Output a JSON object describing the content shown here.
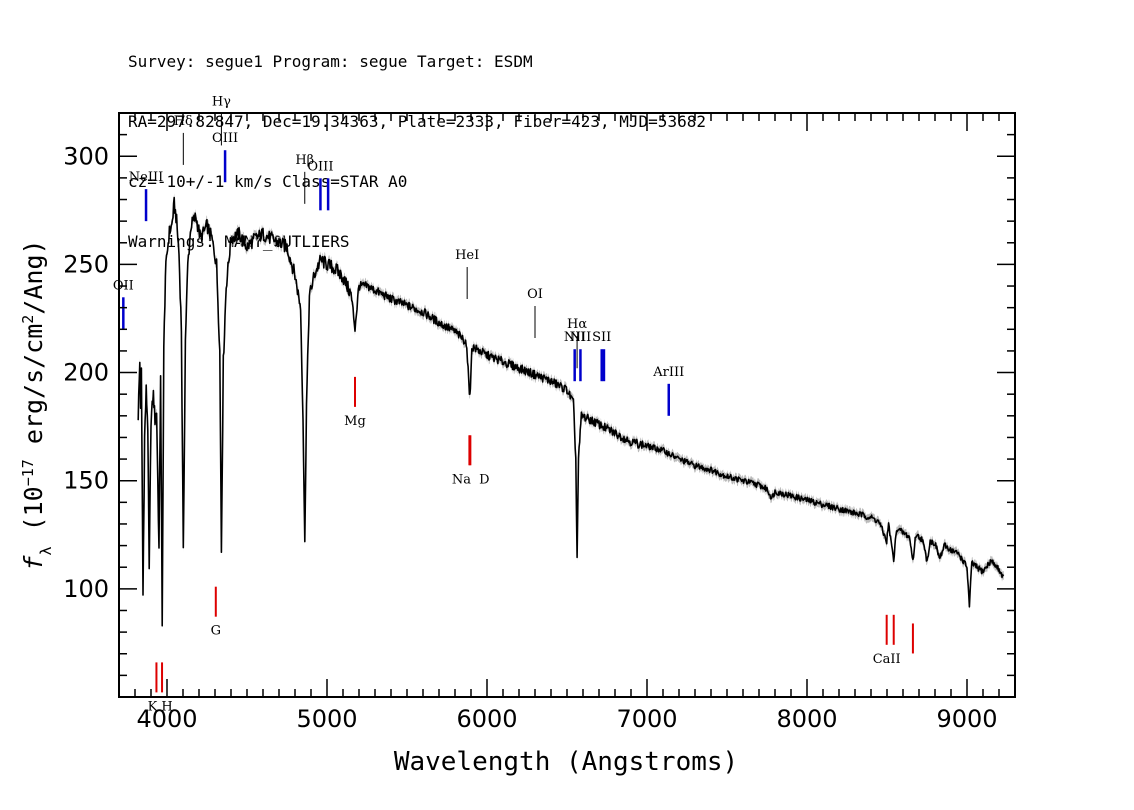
{
  "header": {
    "line1": "Survey: segue1 Program: segue Target: ESDM",
    "line2": "RA=297.82847, Dec=19.34363, Plate=2333, Fiber=423, MJD=53682",
    "line3": "cz=-10+/-1 km/s Class=STAR A0",
    "line4": "Warnings: MANY_OUTLIERS"
  },
  "chart_data": {
    "type": "line",
    "xlabel": "Wavelength (Angstroms)",
    "ylabel": "f_λ (10^-17 erg/s/cm²/Ang)",
    "xlim": [
      3700,
      9300
    ],
    "ylim": [
      50,
      320
    ],
    "xticks": [
      4000,
      5000,
      6000,
      7000,
      8000,
      9000
    ],
    "yticks": [
      100,
      150,
      200,
      250,
      300
    ],
    "grid": false,
    "colors": {
      "flux": "#000000",
      "error_band": "#bbbbbb",
      "emission": "#0000cc",
      "absorption": "#dd0000"
    },
    "series": [
      {
        "values_format": "wavelength_angstrom, flux",
        "values": [
          [
            3820,
            180
          ],
          [
            3830,
            205
          ],
          [
            3835,
            185
          ],
          [
            3840,
            200
          ],
          [
            3850,
            97
          ],
          [
            3860,
            170
          ],
          [
            3870,
            192
          ],
          [
            3880,
            175
          ],
          [
            3889,
            108
          ],
          [
            3900,
            178
          ],
          [
            3915,
            190
          ],
          [
            3925,
            178
          ],
          [
            3935,
            182
          ],
          [
            3950,
            118
          ],
          [
            3960,
            200
          ],
          [
            3970,
            82
          ],
          [
            3980,
            210
          ],
          [
            3990,
            245
          ],
          [
            4000,
            255
          ],
          [
            4015,
            265
          ],
          [
            4030,
            268
          ],
          [
            4045,
            278
          ],
          [
            4060,
            270
          ],
          [
            4075,
            255
          ],
          [
            4090,
            220
          ],
          [
            4102,
            116
          ],
          [
            4115,
            215
          ],
          [
            4130,
            250
          ],
          [
            4150,
            268
          ],
          [
            4180,
            272
          ],
          [
            4210,
            262
          ],
          [
            4250,
            268
          ],
          [
            4280,
            262
          ],
          [
            4310,
            250
          ],
          [
            4330,
            210
          ],
          [
            4340,
            118
          ],
          [
            4352,
            205
          ],
          [
            4370,
            240
          ],
          [
            4400,
            262
          ],
          [
            4450,
            264
          ],
          [
            4500,
            258
          ],
          [
            4550,
            262
          ],
          [
            4600,
            264
          ],
          [
            4650,
            262
          ],
          [
            4700,
            260
          ],
          [
            4750,
            258
          ],
          [
            4800,
            245
          ],
          [
            4835,
            230
          ],
          [
            4850,
            180
          ],
          [
            4861,
            120
          ],
          [
            4872,
            185
          ],
          [
            4890,
            235
          ],
          [
            4920,
            245
          ],
          [
            4960,
            252
          ],
          [
            5000,
            250
          ],
          [
            5050,
            248
          ],
          [
            5100,
            244
          ],
          [
            5150,
            236
          ],
          [
            5175,
            221
          ],
          [
            5200,
            240
          ],
          [
            5250,
            240
          ],
          [
            5300,
            238
          ],
          [
            5400,
            234
          ],
          [
            5500,
            231
          ],
          [
            5600,
            228
          ],
          [
            5700,
            223
          ],
          [
            5800,
            219
          ],
          [
            5870,
            214
          ],
          [
            5890,
            192
          ],
          [
            5896,
            191
          ],
          [
            5905,
            212
          ],
          [
            6000,
            208
          ],
          [
            6100,
            205
          ],
          [
            6200,
            202
          ],
          [
            6300,
            199
          ],
          [
            6400,
            196
          ],
          [
            6500,
            192
          ],
          [
            6540,
            186
          ],
          [
            6555,
            160
          ],
          [
            6563,
            115
          ],
          [
            6572,
            160
          ],
          [
            6590,
            180
          ],
          [
            6650,
            178
          ],
          [
            6700,
            176
          ],
          [
            6800,
            172
          ],
          [
            6900,
            168
          ],
          [
            7000,
            166
          ],
          [
            7100,
            164
          ],
          [
            7200,
            160
          ],
          [
            7300,
            157
          ],
          [
            7400,
            155
          ],
          [
            7500,
            152
          ],
          [
            7600,
            150
          ],
          [
            7700,
            148
          ],
          [
            7750,
            146
          ],
          [
            7780,
            142
          ],
          [
            7800,
            145
          ],
          [
            7900,
            143
          ],
          [
            8000,
            141
          ],
          [
            8100,
            139
          ],
          [
            8200,
            137
          ],
          [
            8300,
            135
          ],
          [
            8400,
            133
          ],
          [
            8450,
            131
          ],
          [
            8498,
            122
          ],
          [
            8510,
            130
          ],
          [
            8542,
            113
          ],
          [
            8560,
            128
          ],
          [
            8600,
            126
          ],
          [
            8640,
            124
          ],
          [
            8662,
            113
          ],
          [
            8680,
            125
          ],
          [
            8720,
            123
          ],
          [
            8750,
            113
          ],
          [
            8770,
            122
          ],
          [
            8800,
            121
          ],
          [
            8830,
            114
          ],
          [
            8860,
            120
          ],
          [
            8900,
            118
          ],
          [
            8950,
            116
          ],
          [
            9000,
            110
          ],
          [
            9015,
            92
          ],
          [
            9030,
            112
          ],
          [
            9060,
            110
          ],
          [
            9100,
            108
          ],
          [
            9150,
            113
          ],
          [
            9200,
            109
          ],
          [
            9230,
            105
          ]
        ]
      }
    ],
    "emission_lines": [
      {
        "label": "OII",
        "x": 3727,
        "y": 220,
        "label_side": "above"
      },
      {
        "label": "NeIII",
        "x": 3869,
        "y": 270,
        "label_side": "above"
      },
      {
        "label": "Hδ",
        "x": 4102,
        "y": 296,
        "label_side": "above"
      },
      {
        "label": "Hγ",
        "x": 4340,
        "y": 305,
        "label_side": "above"
      },
      {
        "label": "OIII",
        "x": 4363,
        "y": 288,
        "label_side": "above"
      },
      {
        "label": "Hβ",
        "x": 4861,
        "y": 278,
        "label_side": "above"
      },
      {
        "label": "OIII",
        "x": 4959,
        "y": 275,
        "label_side": "above"
      },
      {
        "label": "",
        "x": 5007,
        "y": 275,
        "label_side": "above"
      },
      {
        "label": "HeI",
        "x": 5876,
        "y": 234,
        "label_side": "above"
      },
      {
        "label": "OI",
        "x": 6300,
        "y": 216,
        "label_side": "above"
      },
      {
        "label": "NII",
        "x": 6548,
        "y": 196,
        "label_side": "above"
      },
      {
        "label": "Hα",
        "x": 6563,
        "y": 202,
        "label_side": "above"
      },
      {
        "label": "NII",
        "x": 6584,
        "y": 196,
        "label_side": "above"
      },
      {
        "label": "SII",
        "x": 6717,
        "y": 196,
        "label_side": "above"
      },
      {
        "label": "",
        "x": 6731,
        "y": 196,
        "label_side": "above"
      },
      {
        "label": "ArIII",
        "x": 7136,
        "y": 180,
        "label_side": "above"
      }
    ],
    "absorption_lines": [
      {
        "label": "K",
        "x": 3934,
        "y": 66,
        "label_side": "below"
      },
      {
        "label": "H",
        "x": 3969,
        "y": 66,
        "label_side": "below"
      },
      {
        "label": "G",
        "x": 4305,
        "y": 101,
        "label_side": "below"
      },
      {
        "label": "Mg",
        "x": 5175,
        "y": 198,
        "label_side": "below"
      },
      {
        "label": "Na",
        "x": 5890,
        "y": 171,
        "label_side": "below"
      },
      {
        "label": "D",
        "x": 5896,
        "y": 171,
        "label_side": "below"
      },
      {
        "label": "CaII",
        "x": 8498,
        "y": 88,
        "label_side": "below"
      },
      {
        "label": "",
        "x": 8542,
        "y": 88,
        "label_side": "below"
      },
      {
        "label": "",
        "x": 8662,
        "y": 84,
        "label_side": "below"
      }
    ]
  }
}
